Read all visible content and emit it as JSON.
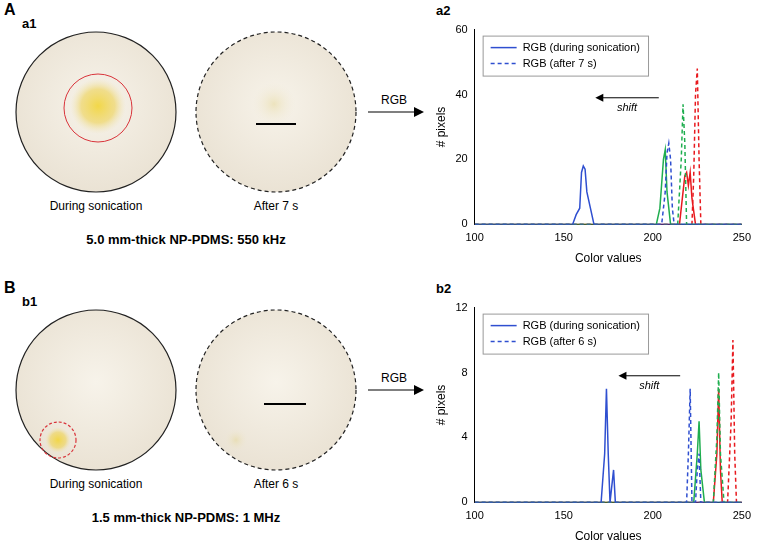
{
  "panels": [
    {
      "label": "A",
      "photo_label": "a1",
      "chart_label": "a2",
      "captions": [
        "During sonication",
        "After 7 s"
      ],
      "condition": "5.0 mm-thick NP-PDMS: 550 kHz",
      "arrow_label": "RGB"
    },
    {
      "label": "B",
      "photo_label": "b1",
      "chart_label": "b2",
      "captions": [
        "During sonication",
        "After 6 s"
      ],
      "condition": "1.5 mm-thick NP-PDMS: 1 MHz",
      "arrow_label": "RGB"
    }
  ],
  "chart_data": [
    {
      "type": "line",
      "x_label": "Color values",
      "y_label": "# pixels",
      "xlim": [
        100,
        250
      ],
      "xticks": [
        100,
        150,
        200,
        250
      ],
      "ylim": [
        0,
        60
      ],
      "yticks": [
        0,
        20,
        40,
        60
      ],
      "grid": false,
      "legend": "upper left",
      "annotations": [
        {
          "text": "shift"
        }
      ],
      "series": [
        {
          "name": "RGB (during sonication)",
          "color": "#2f4fd0",
          "line_style": "solid",
          "x": [
            100,
            155,
            157,
            159,
            160,
            161,
            162,
            163,
            165,
            167,
            250
          ],
          "values": [
            0,
            0,
            3,
            5,
            16,
            18,
            17,
            10,
            5,
            0,
            0
          ]
        },
        {
          "name": "RGB (after 7 s)",
          "color": "#2f4fd0",
          "line_style": "dashed",
          "x": [
            100,
            205,
            207,
            208,
            209,
            210,
            211,
            212,
            250
          ],
          "values": [
            0,
            0,
            10,
            22,
            25,
            20,
            5,
            0,
            0
          ]
        },
        {
          "color": "#1fae4f",
          "line_style": "solid",
          "x": [
            100,
            202,
            204,
            206,
            207,
            208,
            210,
            250
          ],
          "values": [
            0,
            0,
            5,
            20,
            23,
            10,
            0,
            0
          ]
        },
        {
          "color": "#1fae4f",
          "line_style": "dashed",
          "x": [
            100,
            214,
            216,
            217,
            218,
            219,
            250
          ],
          "values": [
            0,
            0,
            20,
            37,
            25,
            0,
            0
          ]
        },
        {
          "color": "#e8191e",
          "line_style": "solid",
          "x": [
            100,
            215,
            217,
            218,
            219,
            220,
            221,
            222,
            224,
            250
          ],
          "values": [
            0,
            0,
            10,
            15,
            16,
            12,
            16,
            8,
            0,
            0
          ]
        },
        {
          "color": "#e8191e",
          "line_style": "dashed",
          "x": [
            100,
            222,
            223,
            224,
            225,
            226,
            227,
            250
          ],
          "values": [
            0,
            0,
            15,
            40,
            48,
            20,
            0,
            0
          ]
        }
      ]
    },
    {
      "type": "line",
      "x_label": "Color values",
      "y_label": "# pixels",
      "xlim": [
        100,
        250
      ],
      "xticks": [
        100,
        150,
        200,
        250
      ],
      "ylim": [
        0,
        12
      ],
      "yticks": [
        0,
        4,
        8,
        12
      ],
      "grid": false,
      "legend": "upper left",
      "annotations": [
        {
          "text": "shift"
        }
      ],
      "series": [
        {
          "name": "RGB (during sonication)",
          "color": "#2f4fd0",
          "line_style": "solid",
          "x": [
            100,
            171,
            173,
            174,
            175,
            176,
            177,
            178,
            179,
            250
          ],
          "values": [
            0,
            0,
            3,
            7,
            3,
            0,
            1,
            2,
            0,
            0
          ]
        },
        {
          "name": "RGB (after 6 s)",
          "color": "#2f4fd0",
          "line_style": "dashed",
          "x": [
            100,
            219,
            220,
            221,
            222,
            224,
            225,
            226,
            227,
            250
          ],
          "values": [
            0,
            0,
            3,
            7,
            0,
            0,
            2,
            3,
            0,
            0
          ]
        },
        {
          "color": "#1fae4f",
          "line_style": "solid",
          "x": [
            100,
            223,
            225,
            226,
            227,
            229,
            250
          ],
          "values": [
            0,
            0,
            3,
            5,
            2,
            0,
            0
          ]
        },
        {
          "color": "#1fae4f",
          "line_style": "dashed",
          "x": [
            100,
            234,
            236,
            237,
            238,
            240,
            250
          ],
          "values": [
            0,
            0,
            4,
            8,
            3,
            0,
            0
          ]
        },
        {
          "color": "#e8191e",
          "line_style": "solid",
          "x": [
            100,
            234,
            236,
            237,
            238,
            239,
            250
          ],
          "values": [
            0,
            0,
            3,
            7,
            2,
            0,
            0
          ]
        },
        {
          "color": "#e8191e",
          "line_style": "dashed",
          "x": [
            100,
            242,
            244,
            245,
            246,
            247,
            250
          ],
          "values": [
            0,
            0,
            5,
            10,
            3,
            0,
            0
          ]
        }
      ]
    }
  ]
}
